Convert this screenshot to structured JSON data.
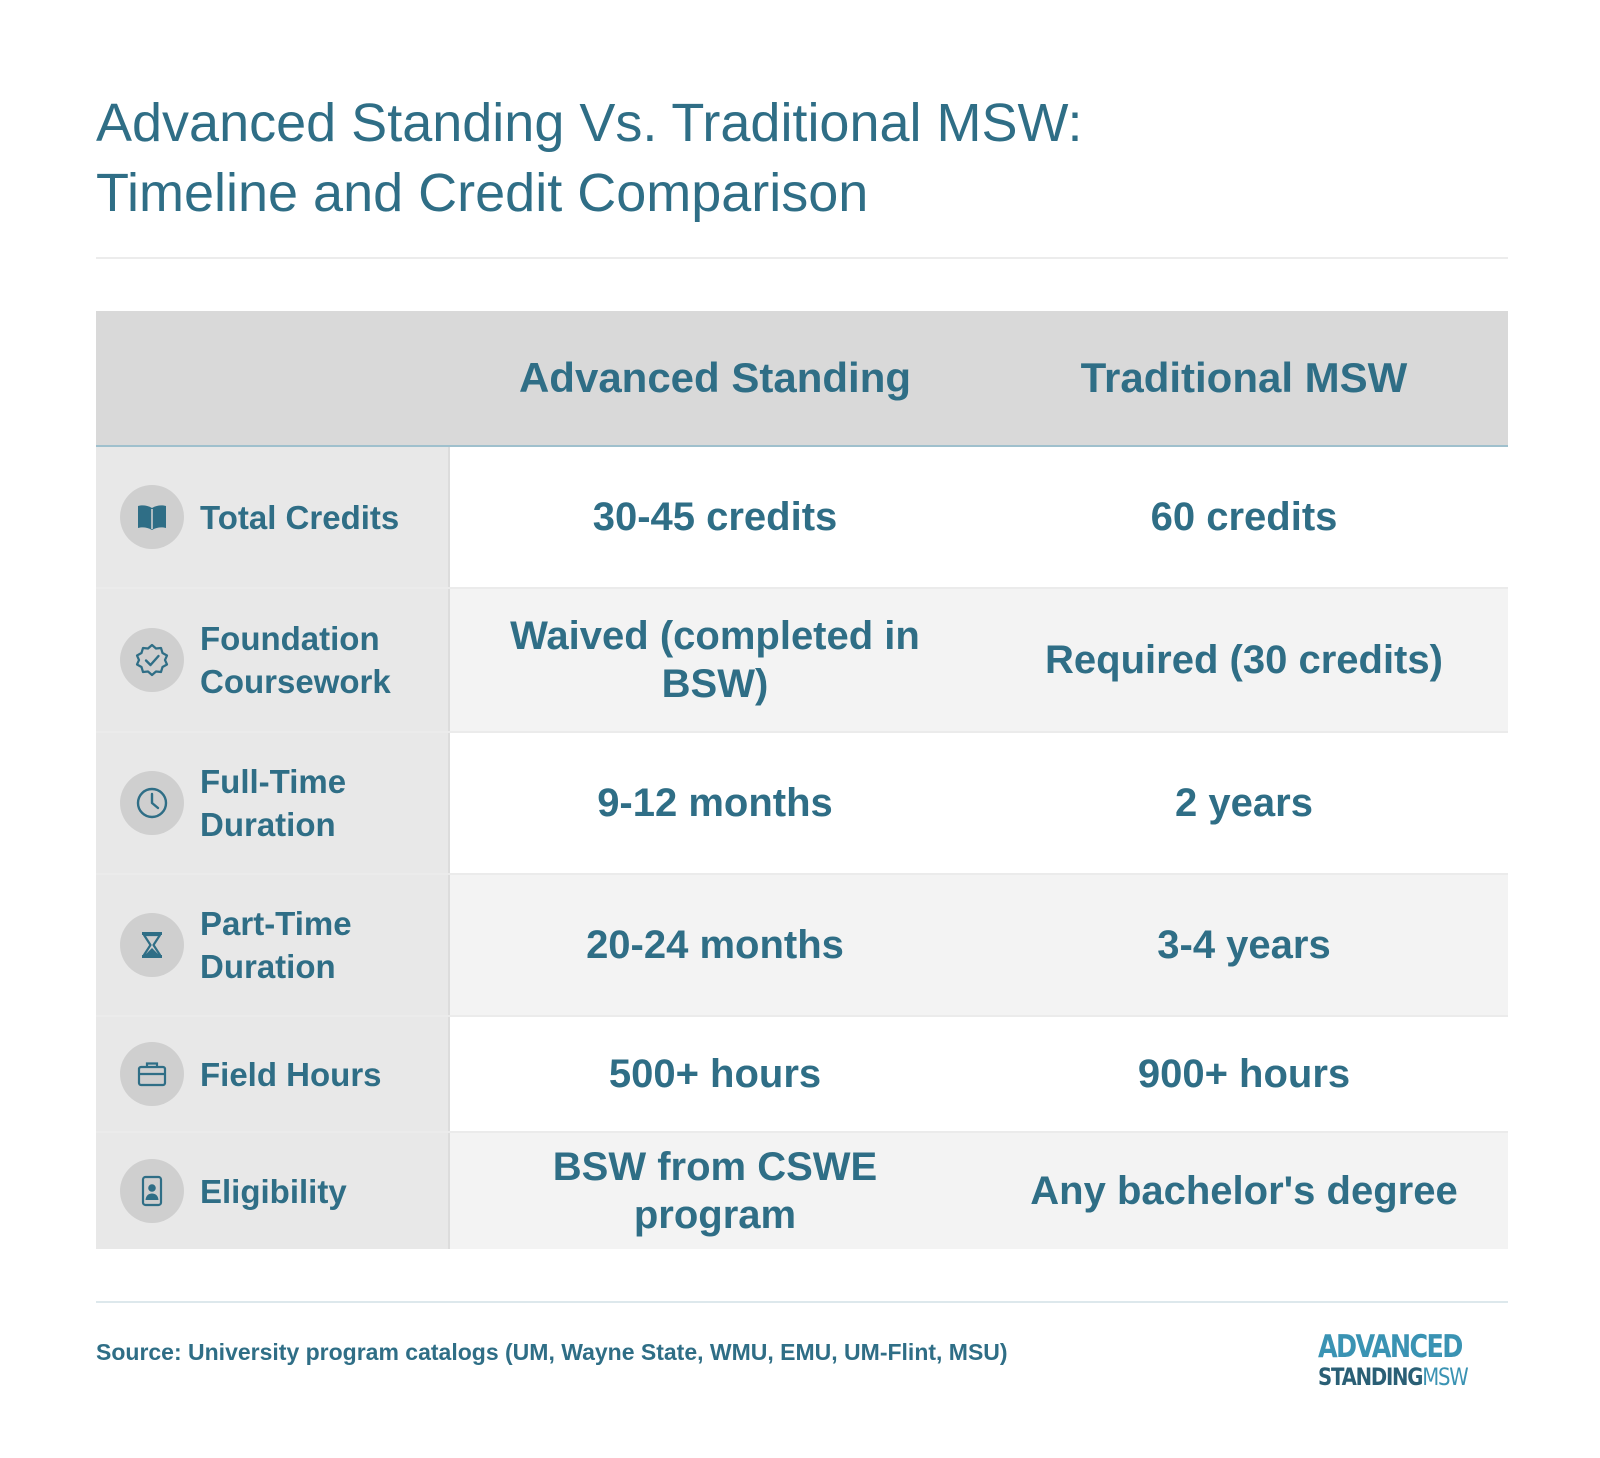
{
  "title": {
    "line1": "Advanced Standing Vs. Traditional MSW:",
    "line2": "Timeline and Credit Comparison"
  },
  "table": {
    "headers": [
      "",
      "Advanced Standing",
      "Traditional MSW"
    ],
    "rows": [
      {
        "icon": "book-icon",
        "label": "Total Credits",
        "advanced": "30-45 credits",
        "traditional": "60 credits"
      },
      {
        "icon": "badge-check-icon",
        "label": "Foundation Coursework",
        "advanced": "Waived (completed in BSW)",
        "traditional": "Required (30 credits)"
      },
      {
        "icon": "clock-icon",
        "label": "Full-Time Duration",
        "advanced": "9-12 months",
        "traditional": "2 years"
      },
      {
        "icon": "hourglass-icon",
        "label": "Part-Time Duration",
        "advanced": "20-24 months",
        "traditional": "3-4 years"
      },
      {
        "icon": "briefcase-icon",
        "label": "Field Hours",
        "advanced": "500+ hours",
        "traditional": "900+ hours"
      },
      {
        "icon": "id-badge-icon",
        "label": "Eligibility",
        "advanced": "BSW from CSWE program",
        "traditional": "Any bachelor's degree"
      }
    ]
  },
  "footer": {
    "source": "Source: University program catalogs (UM, Wayne State, WMU, EMU, UM-Flint, MSU)",
    "logo_top": "ADVANCED",
    "logo_bottom_dark": "STANDING",
    "logo_bottom_light": "MSW"
  },
  "colors": {
    "text": "#2f6e86",
    "header_bg": "#d9d9d9",
    "label_bg": "#e8e8e8",
    "alt_row_bg": "#f3f3f3",
    "logo_accent": "#3a93b3"
  }
}
